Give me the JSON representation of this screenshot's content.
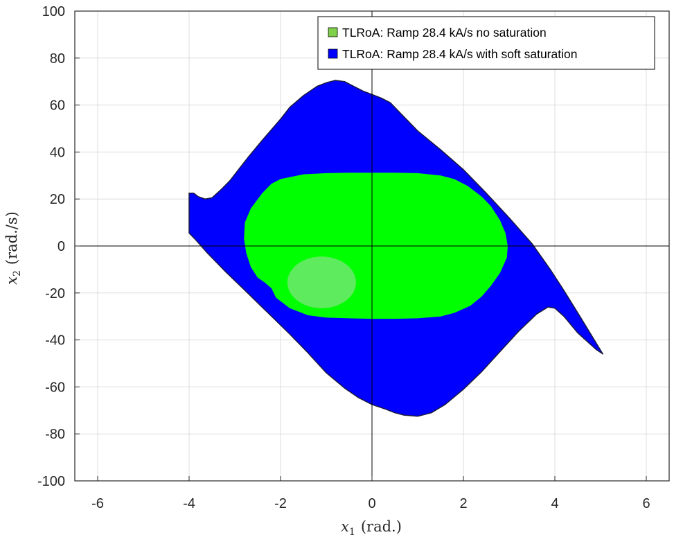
{
  "chart_data": {
    "type": "area",
    "xlabel": {
      "symbol": "x",
      "subscript": "1",
      "unit": "(rad.)"
    },
    "ylabel": {
      "symbol": "x",
      "subscript": "2",
      "unit": "(rad./s)"
    },
    "xlim": [
      -6.5,
      6.5
    ],
    "ylim": [
      -100,
      100
    ],
    "xticks": [
      -6,
      -4,
      -2,
      0,
      2,
      4,
      6
    ],
    "yticks": [
      100,
      80,
      60,
      40,
      20,
      0,
      -20,
      -40,
      -60,
      -80,
      -100
    ],
    "grid": true,
    "legend_position": "top-right",
    "series": [
      {
        "name": "TLRoA: Ramp 28.4 kA/s no saturation",
        "color": "#00ff00",
        "boundary": [
          [
            -2.0,
            28.5
          ],
          [
            -1.5,
            30.5
          ],
          [
            -1.0,
            31.0
          ],
          [
            -0.5,
            31.2
          ],
          [
            0.0,
            31.2
          ],
          [
            0.5,
            31.2
          ],
          [
            1.0,
            31.0
          ],
          [
            1.5,
            30.0
          ],
          [
            1.8,
            28.5
          ],
          [
            2.1,
            25.5
          ],
          [
            2.4,
            21.0
          ],
          [
            2.6,
            17.0
          ],
          [
            2.8,
            11.0
          ],
          [
            2.92,
            5.5
          ],
          [
            2.97,
            0.0
          ],
          [
            2.95,
            -5.0
          ],
          [
            2.8,
            -11.5
          ],
          [
            2.6,
            -17.0
          ],
          [
            2.4,
            -21.5
          ],
          [
            2.15,
            -25.5
          ],
          [
            1.8,
            -28.5
          ],
          [
            1.5,
            -30.0
          ],
          [
            1.0,
            -30.8
          ],
          [
            0.5,
            -31.0
          ],
          [
            0.0,
            -31.0
          ],
          [
            -0.5,
            -30.8
          ],
          [
            -1.0,
            -30.5
          ],
          [
            -1.4,
            -29.5
          ],
          [
            -1.8,
            -26.5
          ],
          [
            -2.1,
            -22.0
          ],
          [
            -2.2,
            -18.0
          ],
          [
            -2.35,
            -15.5
          ],
          [
            -2.5,
            -13.5
          ],
          [
            -2.65,
            -9.0
          ],
          [
            -2.75,
            -3.0
          ],
          [
            -2.8,
            3.0
          ],
          [
            -2.78,
            10.0
          ],
          [
            -2.65,
            16.0
          ],
          [
            -2.4,
            22.5
          ],
          [
            -2.2,
            26.5
          ]
        ],
        "highlight": {
          "center": [
            -1.1,
            -15.5
          ],
          "rx": 0.75,
          "ry": 11,
          "color": "#6fe86f"
        }
      },
      {
        "name": "TLRoA: Ramp 28.4 kA/s with soft saturation",
        "color": "#0000ff",
        "boundary": [
          [
            -4.0,
            22.5
          ],
          [
            -3.9,
            22.5
          ],
          [
            -3.8,
            21.0
          ],
          [
            -3.65,
            20.0
          ],
          [
            -3.5,
            20.5
          ],
          [
            -3.3,
            24.0
          ],
          [
            -3.1,
            28.0
          ],
          [
            -2.9,
            33.0
          ],
          [
            -2.7,
            38.0
          ],
          [
            -2.4,
            45.0
          ],
          [
            -2.0,
            54.0
          ],
          [
            -1.8,
            59.0
          ],
          [
            -1.5,
            64.0
          ],
          [
            -1.2,
            68.0
          ],
          [
            -1.0,
            69.5
          ],
          [
            -0.8,
            70.5
          ],
          [
            -0.6,
            70.0
          ],
          [
            -0.4,
            68.0
          ],
          [
            -0.2,
            66.0
          ],
          [
            0.0,
            64.5
          ],
          [
            0.2,
            63.0
          ],
          [
            0.4,
            61.0
          ],
          [
            0.6,
            57.0
          ],
          [
            1.0,
            49.0
          ],
          [
            1.5,
            41.0
          ],
          [
            2.0,
            32.5
          ],
          [
            2.5,
            22.5
          ],
          [
            3.0,
            12.0
          ],
          [
            3.5,
            1.0
          ],
          [
            3.9,
            -10.0
          ],
          [
            4.2,
            -19.0
          ],
          [
            4.55,
            -30.0
          ],
          [
            4.8,
            -38.0
          ],
          [
            5.05,
            -46.0
          ],
          [
            4.9,
            -44.0
          ],
          [
            4.5,
            -37.0
          ],
          [
            4.2,
            -30.0
          ],
          [
            4.0,
            -26.5
          ],
          [
            3.85,
            -26.0
          ],
          [
            3.6,
            -29.0
          ],
          [
            3.2,
            -36.5
          ],
          [
            2.8,
            -45.0
          ],
          [
            2.4,
            -53.5
          ],
          [
            2.0,
            -61.0
          ],
          [
            1.6,
            -67.5
          ],
          [
            1.3,
            -71.0
          ],
          [
            1.0,
            -72.5
          ],
          [
            0.7,
            -72.0
          ],
          [
            0.5,
            -71.0
          ],
          [
            0.3,
            -69.5
          ],
          [
            0.0,
            -67.5
          ],
          [
            -0.3,
            -64.5
          ],
          [
            -0.6,
            -60.5
          ],
          [
            -1.0,
            -54.0
          ],
          [
            -1.4,
            -45.5
          ],
          [
            -1.8,
            -37.5
          ],
          [
            -2.3,
            -28.0
          ],
          [
            -2.8,
            -18.5
          ],
          [
            -3.2,
            -11.0
          ],
          [
            -3.6,
            -3.0
          ],
          [
            -3.85,
            2.5
          ],
          [
            -4.0,
            5.5
          ]
        ]
      }
    ]
  }
}
